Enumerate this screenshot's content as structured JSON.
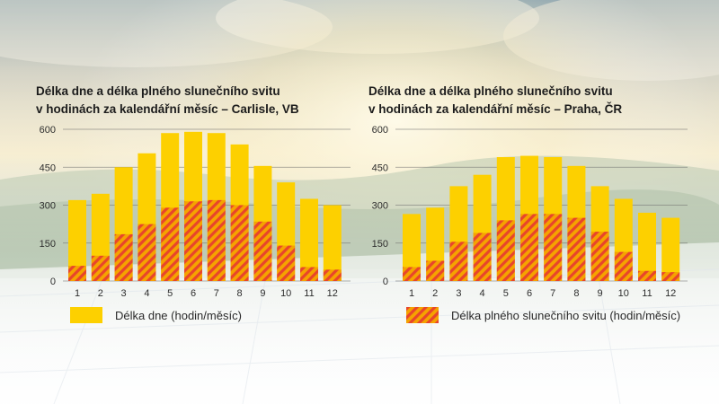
{
  "colors": {
    "day_length": "#FDD000",
    "sunshine_stripe_a": "#F5A300",
    "sunshine_stripe_b": "#E8452B"
  },
  "legend": {
    "day_length": "Délka dne (hodin/měsíc)",
    "sunshine": "Délka plného slunečního svitu (hodin/měsíc)"
  },
  "chart_data": [
    {
      "type": "bar",
      "title_lines": [
        "Délka dne a délka plného slunečního svitu",
        "v hodinách za kalendářní měsíc – Carlisle, VB"
      ],
      "categories": [
        "1",
        "2",
        "3",
        "4",
        "5",
        "6",
        "7",
        "8",
        "9",
        "10",
        "11",
        "12"
      ],
      "yticks": [
        "0",
        "150",
        "300",
        "450",
        "600"
      ],
      "ylim": [
        0,
        600
      ],
      "grid": true,
      "series": [
        {
          "name": "Délka dne (hodin/měsíc)",
          "values": [
            320,
            345,
            450,
            505,
            585,
            590,
            585,
            540,
            455,
            390,
            325,
            300
          ]
        },
        {
          "name": "Délka plného slunečního svitu (hodin/měsíc)",
          "values": [
            60,
            100,
            185,
            225,
            290,
            315,
            320,
            300,
            235,
            140,
            55,
            45
          ]
        }
      ]
    },
    {
      "type": "bar",
      "title_lines": [
        "Délka dne a délka plného slunečního svitu",
        "v hodinách za kalendářní měsíc – Praha, ČR"
      ],
      "categories": [
        "1",
        "2",
        "3",
        "4",
        "5",
        "6",
        "7",
        "8",
        "9",
        "10",
        "11",
        "12"
      ],
      "yticks": [
        "0",
        "150",
        "300",
        "450",
        "600"
      ],
      "ylim": [
        0,
        600
      ],
      "grid": true,
      "series": [
        {
          "name": "Délka dne (hodin/měsíc)",
          "values": [
            265,
            290,
            375,
            420,
            490,
            495,
            490,
            455,
            375,
            325,
            270,
            250
          ]
        },
        {
          "name": "Délka plného slunečního svitu (hodin/měsíc)",
          "values": [
            55,
            80,
            155,
            190,
            240,
            265,
            265,
            250,
            195,
            115,
            40,
            35
          ]
        }
      ]
    }
  ]
}
